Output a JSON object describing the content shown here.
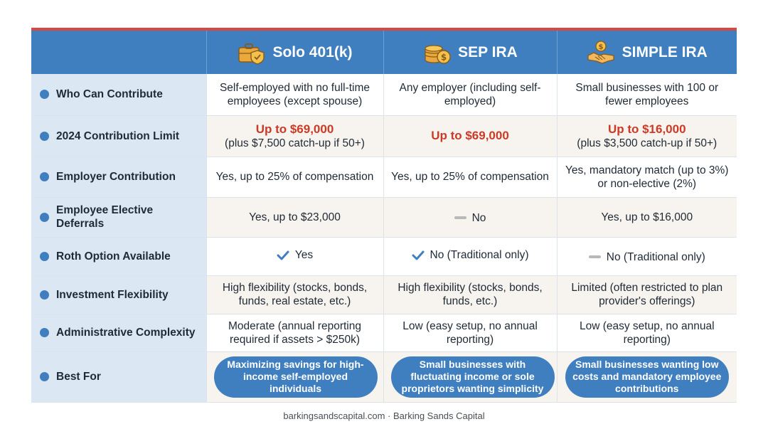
{
  "columns": [
    {
      "title": "Solo 401(k)",
      "icon": "briefcase-shield-icon"
    },
    {
      "title": "SEP IRA",
      "icon": "coin-stack-icon"
    },
    {
      "title": "SIMPLE IRA",
      "icon": "handshake-coin-icon"
    }
  ],
  "rows": [
    {
      "label": "Who Can Contribute",
      "cells": [
        {
          "text": "Self-employed with no full-time employees (except spouse)"
        },
        {
          "text": "Any employer (including self-employed)"
        },
        {
          "text": "Small businesses with 100 or fewer employees"
        }
      ]
    },
    {
      "label": "2024 Contribution Limit",
      "cells": [
        {
          "highlight": "Up to $69,000",
          "text": "(plus $7,500 catch-up if 50+)"
        },
        {
          "highlight": "Up to $69,000",
          "text": ""
        },
        {
          "highlight": "Up to $16,000",
          "text": "(plus $3,500 catch-up if 50+)"
        }
      ]
    },
    {
      "label": "Employer Contribution",
      "cells": [
        {
          "text": "Yes, up to 25% of compensation"
        },
        {
          "text": "Yes, up to 25% of compensation"
        },
        {
          "text": "Yes, mandatory match (up to 3%) or non-elective (2%)"
        }
      ]
    },
    {
      "label": "Employee Elective Deferrals",
      "cells": [
        {
          "text": "Yes, up to $23,000"
        },
        {
          "text": "No",
          "mark": "dash"
        },
        {
          "text": "Yes, up to $16,000"
        }
      ]
    },
    {
      "label": "Roth Option Available",
      "cells": [
        {
          "text": "Yes",
          "mark": "check"
        },
        {
          "text": "No (Traditional only)",
          "mark": "check"
        },
        {
          "text": "No (Traditional only)",
          "mark": "dash"
        }
      ]
    },
    {
      "label": "Investment Flexibility",
      "cells": [
        {
          "text": "High flexibility (stocks, bonds, funds, real estate, etc.)"
        },
        {
          "text": "High flexibility (stocks, bonds, funds, etc.)"
        },
        {
          "text": "Limited (often restricted to plan provider's offerings)"
        }
      ]
    },
    {
      "label": "Administrative Complexity",
      "cells": [
        {
          "text": "Moderate (annual reporting required if assets > $250k)"
        },
        {
          "text": "Low (easy setup, no annual reporting)"
        },
        {
          "text": "Low (easy setup, no annual reporting)"
        }
      ]
    },
    {
      "label": "Best For",
      "cells": [
        {
          "pill": "Maximizing savings for high-income self-employed individuals"
        },
        {
          "pill": "Small businesses with fluctuating income or sole proprietors wanting simplicity"
        },
        {
          "pill": "Small businesses wanting low costs and mandatory employee contributions"
        }
      ]
    }
  ],
  "footer": "barkingsandscapital.com · Barking Sands Capital",
  "colors": {
    "header_blue": "#3f7fc0",
    "accent_red": "#d9473f",
    "highlight_red": "#cc3a26",
    "rowhead_bg": "#dbe8f4",
    "alt_row_bg": "#f7f3ee"
  }
}
